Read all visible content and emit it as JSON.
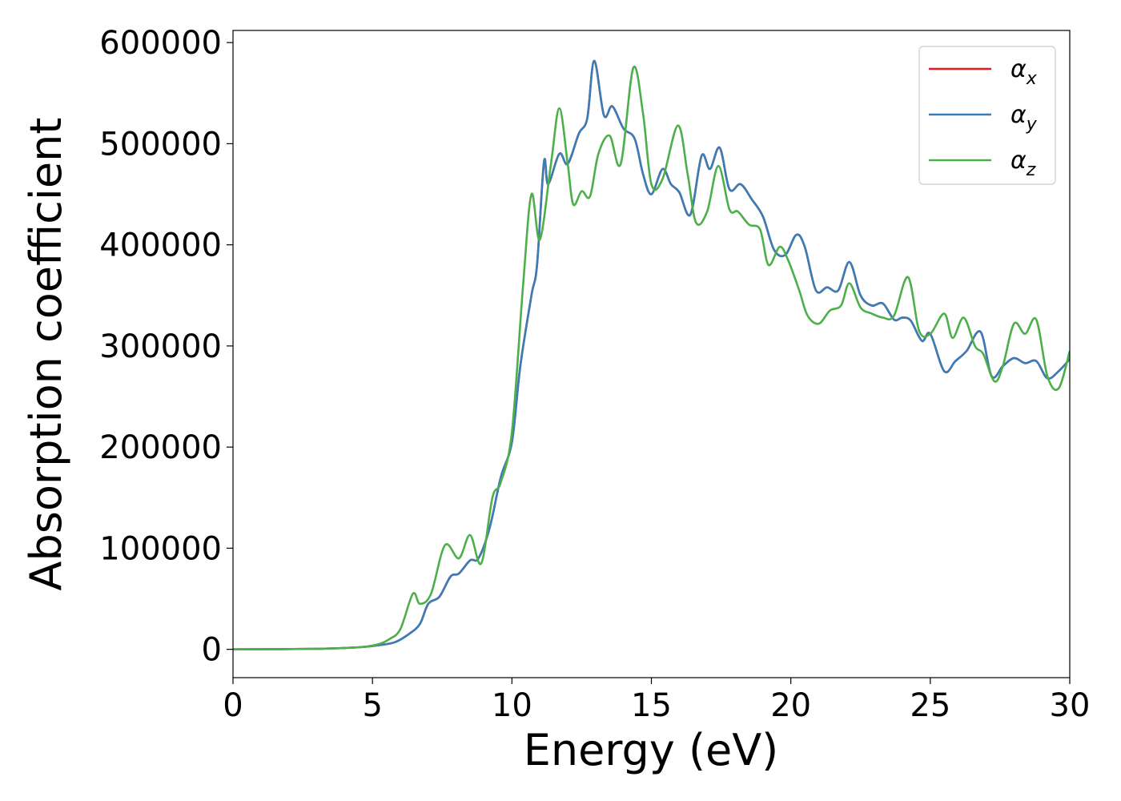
{
  "chart_data": {
    "type": "line",
    "title": "",
    "xlabel": "Energy (eV)",
    "ylabel": "Absorption coefficient",
    "xlim": [
      0,
      30
    ],
    "ylim": [
      -28000,
      612000
    ],
    "x_ticks": [
      0,
      5,
      10,
      15,
      20,
      25,
      30
    ],
    "y_ticks": [
      0,
      100000,
      200000,
      300000,
      400000,
      500000,
      600000
    ],
    "grid": false,
    "legend_position": "top-right",
    "series": [
      {
        "name": "α",
        "subscript": "x",
        "color": "#e41a1c",
        "points": [
          [
            0,
            0
          ],
          [
            3,
            500
          ],
          [
            4.5,
            2000
          ],
          [
            5.2,
            4000
          ],
          [
            5.8,
            7000
          ],
          [
            6.3,
            15000
          ],
          [
            6.7,
            25000
          ],
          [
            7.0,
            45000
          ],
          [
            7.4,
            52000
          ],
          [
            7.8,
            72000
          ],
          [
            8.1,
            75000
          ],
          [
            8.5,
            88000
          ],
          [
            8.8,
            90000
          ],
          [
            9.2,
            120000
          ],
          [
            9.6,
            170000
          ],
          [
            10.0,
            205000
          ],
          [
            10.3,
            280000
          ],
          [
            10.7,
            350000
          ],
          [
            10.9,
            380000
          ],
          [
            11.15,
            482000
          ],
          [
            11.3,
            460000
          ],
          [
            11.7,
            490000
          ],
          [
            12.0,
            480000
          ],
          [
            12.4,
            510000
          ],
          [
            12.7,
            525000
          ],
          [
            12.95,
            582000
          ],
          [
            13.3,
            528000
          ],
          [
            13.6,
            537000
          ],
          [
            14.0,
            515000
          ],
          [
            14.4,
            505000
          ],
          [
            14.7,
            470000
          ],
          [
            15.0,
            450000
          ],
          [
            15.4,
            475000
          ],
          [
            15.7,
            460000
          ],
          [
            16.0,
            452000
          ],
          [
            16.4,
            430000
          ],
          [
            16.8,
            488000
          ],
          [
            17.1,
            475000
          ],
          [
            17.45,
            496000
          ],
          [
            17.8,
            455000
          ],
          [
            18.2,
            460000
          ],
          [
            18.6,
            445000
          ],
          [
            19.0,
            428000
          ],
          [
            19.4,
            395000
          ],
          [
            19.8,
            390000
          ],
          [
            20.2,
            410000
          ],
          [
            20.5,
            398000
          ],
          [
            20.9,
            355000
          ],
          [
            21.3,
            358000
          ],
          [
            21.7,
            355000
          ],
          [
            22.1,
            383000
          ],
          [
            22.5,
            350000
          ],
          [
            22.9,
            340000
          ],
          [
            23.3,
            342000
          ],
          [
            23.7,
            326000
          ],
          [
            24.0,
            328000
          ],
          [
            24.3,
            325000
          ],
          [
            24.7,
            305000
          ],
          [
            25.0,
            312000
          ],
          [
            25.5,
            275000
          ],
          [
            25.9,
            285000
          ],
          [
            26.3,
            295000
          ],
          [
            26.8,
            314000
          ],
          [
            27.2,
            270000
          ],
          [
            27.6,
            280000
          ],
          [
            28.0,
            288000
          ],
          [
            28.4,
            283000
          ],
          [
            28.8,
            285000
          ],
          [
            29.2,
            268000
          ],
          [
            29.6,
            275000
          ],
          [
            30.0,
            287000
          ]
        ]
      },
      {
        "name": "α",
        "subscript": "y",
        "color": "#377eb8",
        "points": [
          [
            0,
            0
          ],
          [
            3,
            500
          ],
          [
            4.5,
            2000
          ],
          [
            5.2,
            4000
          ],
          [
            5.8,
            7000
          ],
          [
            6.3,
            15000
          ],
          [
            6.7,
            25000
          ],
          [
            7.0,
            45000
          ],
          [
            7.4,
            52000
          ],
          [
            7.8,
            72000
          ],
          [
            8.1,
            75000
          ],
          [
            8.5,
            88000
          ],
          [
            8.8,
            90000
          ],
          [
            9.2,
            120000
          ],
          [
            9.6,
            170000
          ],
          [
            10.0,
            205000
          ],
          [
            10.3,
            280000
          ],
          [
            10.7,
            350000
          ],
          [
            10.9,
            380000
          ],
          [
            11.15,
            482000
          ],
          [
            11.3,
            460000
          ],
          [
            11.7,
            490000
          ],
          [
            12.0,
            480000
          ],
          [
            12.4,
            510000
          ],
          [
            12.7,
            525000
          ],
          [
            12.95,
            582000
          ],
          [
            13.3,
            528000
          ],
          [
            13.6,
            537000
          ],
          [
            14.0,
            515000
          ],
          [
            14.4,
            505000
          ],
          [
            14.7,
            470000
          ],
          [
            15.0,
            450000
          ],
          [
            15.4,
            475000
          ],
          [
            15.7,
            460000
          ],
          [
            16.0,
            452000
          ],
          [
            16.4,
            430000
          ],
          [
            16.8,
            488000
          ],
          [
            17.1,
            475000
          ],
          [
            17.45,
            496000
          ],
          [
            17.8,
            455000
          ],
          [
            18.2,
            460000
          ],
          [
            18.6,
            445000
          ],
          [
            19.0,
            428000
          ],
          [
            19.4,
            395000
          ],
          [
            19.8,
            390000
          ],
          [
            20.2,
            410000
          ],
          [
            20.5,
            398000
          ],
          [
            20.9,
            355000
          ],
          [
            21.3,
            358000
          ],
          [
            21.7,
            355000
          ],
          [
            22.1,
            383000
          ],
          [
            22.5,
            350000
          ],
          [
            22.9,
            340000
          ],
          [
            23.3,
            342000
          ],
          [
            23.7,
            326000
          ],
          [
            24.0,
            328000
          ],
          [
            24.3,
            325000
          ],
          [
            24.7,
            305000
          ],
          [
            25.0,
            312000
          ],
          [
            25.5,
            275000
          ],
          [
            25.9,
            285000
          ],
          [
            26.3,
            295000
          ],
          [
            26.8,
            314000
          ],
          [
            27.2,
            270000
          ],
          [
            27.6,
            280000
          ],
          [
            28.0,
            288000
          ],
          [
            28.4,
            283000
          ],
          [
            28.8,
            285000
          ],
          [
            29.2,
            268000
          ],
          [
            29.6,
            275000
          ],
          [
            30.0,
            287000
          ]
        ]
      },
      {
        "name": "α",
        "subscript": "z",
        "color": "#4daf4a",
        "points": [
          [
            0,
            0
          ],
          [
            3,
            500
          ],
          [
            4.5,
            2000
          ],
          [
            5.2,
            5000
          ],
          [
            5.6,
            10000
          ],
          [
            6.0,
            20000
          ],
          [
            6.45,
            55000
          ],
          [
            6.7,
            45000
          ],
          [
            7.1,
            55000
          ],
          [
            7.6,
            103000
          ],
          [
            8.1,
            90000
          ],
          [
            8.5,
            113000
          ],
          [
            8.9,
            85000
          ],
          [
            9.3,
            150000
          ],
          [
            9.6,
            165000
          ],
          [
            10.0,
            215000
          ],
          [
            10.4,
            360000
          ],
          [
            10.7,
            450000
          ],
          [
            11.0,
            405000
          ],
          [
            11.4,
            480000
          ],
          [
            11.7,
            535000
          ],
          [
            12.0,
            480000
          ],
          [
            12.2,
            440000
          ],
          [
            12.5,
            453000
          ],
          [
            12.8,
            448000
          ],
          [
            13.1,
            490000
          ],
          [
            13.5,
            508000
          ],
          [
            13.9,
            480000
          ],
          [
            14.35,
            575000
          ],
          [
            14.7,
            530000
          ],
          [
            15.0,
            460000
          ],
          [
            15.4,
            465000
          ],
          [
            15.95,
            518000
          ],
          [
            16.3,
            470000
          ],
          [
            16.6,
            422000
          ],
          [
            17.0,
            433000
          ],
          [
            17.4,
            478000
          ],
          [
            17.8,
            435000
          ],
          [
            18.1,
            433000
          ],
          [
            18.5,
            420000
          ],
          [
            18.9,
            415000
          ],
          [
            19.2,
            380000
          ],
          [
            19.6,
            398000
          ],
          [
            19.9,
            385000
          ],
          [
            20.3,
            355000
          ],
          [
            20.6,
            330000
          ],
          [
            21.0,
            322000
          ],
          [
            21.4,
            335000
          ],
          [
            21.8,
            340000
          ],
          [
            22.1,
            362000
          ],
          [
            22.5,
            338000
          ],
          [
            22.9,
            332000
          ],
          [
            23.3,
            328000
          ],
          [
            23.7,
            330000
          ],
          [
            24.2,
            368000
          ],
          [
            24.6,
            315000
          ],
          [
            25.0,
            312000
          ],
          [
            25.5,
            332000
          ],
          [
            25.8,
            308000
          ],
          [
            26.2,
            328000
          ],
          [
            26.6,
            300000
          ],
          [
            26.9,
            292000
          ],
          [
            27.3,
            265000
          ],
          [
            27.6,
            280000
          ],
          [
            28.0,
            322000
          ],
          [
            28.4,
            312000
          ],
          [
            28.8,
            326000
          ],
          [
            29.2,
            270000
          ],
          [
            29.6,
            258000
          ],
          [
            30.0,
            295000
          ]
        ]
      }
    ]
  }
}
